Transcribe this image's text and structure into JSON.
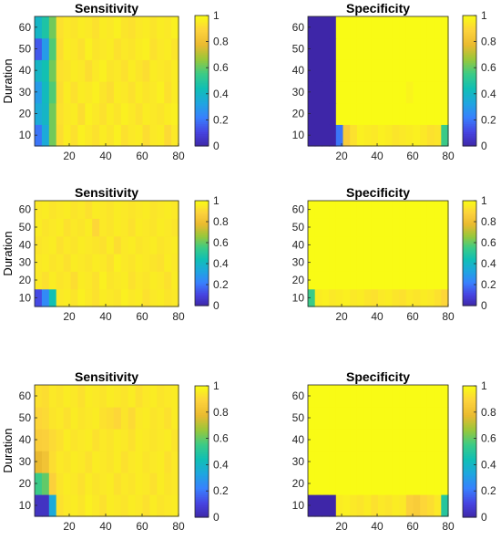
{
  "figure": {
    "colormap": [
      "#3e26a8",
      "#4745e2",
      "#3881fe",
      "#1ea6df",
      "#10bfb4",
      "#3ccb86",
      "#99c83a",
      "#eaba30",
      "#fdd23c",
      "#f9fb15"
    ],
    "colorbar_ticks": [
      "0",
      "0.2",
      "0.4",
      "0.6",
      "0.8",
      "1"
    ]
  },
  "chart_data": [
    {
      "type": "heatmap",
      "title": "Sensitivity",
      "ylabel": "Duration",
      "xticks": [
        "20",
        "40",
        "60",
        "80"
      ],
      "yticks": [
        "10",
        "20",
        "30",
        "40",
        "50",
        "60"
      ],
      "xlim": [
        1,
        80
      ],
      "ylim": [
        5,
        65
      ],
      "clim": [
        0,
        1
      ],
      "rows": [
        "10",
        "20",
        "30",
        "40",
        "50",
        "60"
      ],
      "cols": [
        "1-4",
        "5-8",
        "9-12",
        "13-16",
        "17-20",
        "21-24",
        "25-28",
        "29-32",
        "33-36",
        "37-40",
        "41-44",
        "45-48",
        "49-52",
        "53-56",
        "57-60",
        "61-64",
        "65-68",
        "69-72",
        "73-76",
        "77-80"
      ],
      "z": [
        [
          0.2,
          0.35,
          0.62,
          0.92,
          0.96,
          0.93,
          0.97,
          0.95,
          0.93,
          0.96,
          0.94,
          0.97,
          0.93,
          0.95,
          0.96,
          0.92,
          0.95,
          0.96,
          0.91,
          0.95
        ],
        [
          0.35,
          0.4,
          0.62,
          0.93,
          0.95,
          0.96,
          0.92,
          0.97,
          0.95,
          0.93,
          0.96,
          0.94,
          0.97,
          0.95,
          0.93,
          0.96,
          0.95,
          0.94,
          0.96,
          0.97
        ],
        [
          0.3,
          0.42,
          0.58,
          0.92,
          0.96,
          0.93,
          0.96,
          0.95,
          0.97,
          0.94,
          0.92,
          0.96,
          0.95,
          0.93,
          0.96,
          0.94,
          0.95,
          0.97,
          0.93,
          0.96
        ],
        [
          0.4,
          0.45,
          0.62,
          0.93,
          0.94,
          0.96,
          0.95,
          0.92,
          0.95,
          0.97,
          0.94,
          0.95,
          0.93,
          0.96,
          0.94,
          0.92,
          0.96,
          0.95,
          0.94,
          0.96
        ],
        [
          0.15,
          0.3,
          0.58,
          0.92,
          0.96,
          0.95,
          0.93,
          0.97,
          0.94,
          0.95,
          0.96,
          0.93,
          0.95,
          0.94,
          0.96,
          0.97,
          0.93,
          0.95,
          0.96,
          0.94
        ],
        [
          0.4,
          0.48,
          0.62,
          0.93,
          0.95,
          0.94,
          0.96,
          0.95,
          0.93,
          0.96,
          0.95,
          0.97,
          0.94,
          0.93,
          0.95,
          0.96,
          0.94,
          0.96,
          0.95,
          0.97
        ]
      ]
    },
    {
      "type": "heatmap",
      "title": "Specificity",
      "ylabel": "",
      "xticks": [
        "20",
        "40",
        "60",
        "80"
      ],
      "yticks": [
        "10",
        "20",
        "30",
        "40",
        "50",
        "60"
      ],
      "xlim": [
        1,
        80
      ],
      "ylim": [
        5,
        65
      ],
      "clim": [
        0,
        1
      ],
      "rows": [
        "10",
        "20",
        "30",
        "40",
        "50",
        "60"
      ],
      "cols": [
        "1-4",
        "5-8",
        "9-12",
        "13-16",
        "17-20",
        "21-24",
        "25-28",
        "29-32",
        "33-36",
        "37-40",
        "41-44",
        "45-48",
        "49-52",
        "53-56",
        "57-60",
        "61-64",
        "65-68",
        "69-72",
        "73-76",
        "77-80"
      ],
      "z": [
        [
          0.0,
          0.0,
          0.0,
          0.0,
          0.2,
          0.86,
          0.93,
          0.97,
          0.96,
          0.95,
          0.97,
          0.96,
          0.94,
          0.95,
          0.96,
          0.97,
          0.95,
          0.93,
          0.94,
          0.55
        ],
        [
          0.0,
          0.0,
          0.0,
          0.0,
          1.0,
          1.0,
          1.0,
          1.0,
          1.0,
          1.0,
          1.0,
          1.0,
          1.0,
          1.0,
          1.0,
          1.0,
          1.0,
          1.0,
          1.0,
          1.0
        ],
        [
          0.0,
          0.0,
          0.0,
          0.0,
          1.0,
          1.0,
          1.0,
          1.0,
          1.0,
          1.0,
          1.0,
          1.0,
          1.0,
          1.0,
          0.98,
          1.0,
          1.0,
          1.0,
          1.0,
          1.0
        ],
        [
          0.0,
          0.0,
          0.0,
          0.0,
          1.0,
          1.0,
          1.0,
          1.0,
          1.0,
          1.0,
          1.0,
          1.0,
          1.0,
          1.0,
          1.0,
          1.0,
          1.0,
          1.0,
          1.0,
          1.0
        ],
        [
          0.0,
          0.0,
          0.0,
          0.0,
          1.0,
          1.0,
          1.0,
          1.0,
          1.0,
          1.0,
          1.0,
          1.0,
          1.0,
          1.0,
          1.0,
          1.0,
          1.0,
          1.0,
          1.0,
          1.0
        ],
        [
          0.0,
          0.0,
          0.0,
          0.0,
          1.0,
          1.0,
          1.0,
          1.0,
          1.0,
          1.0,
          1.0,
          1.0,
          1.0,
          1.0,
          1.0,
          1.0,
          1.0,
          1.0,
          1.0,
          1.0
        ]
      ]
    },
    {
      "type": "heatmap",
      "title": "Sensitivity",
      "ylabel": "Duration",
      "xticks": [
        "20",
        "40",
        "60",
        "80"
      ],
      "yticks": [
        "10",
        "20",
        "30",
        "40",
        "50",
        "60"
      ],
      "xlim": [
        1,
        80
      ],
      "ylim": [
        5,
        65
      ],
      "clim": [
        0,
        1
      ],
      "rows": [
        "10",
        "20",
        "30",
        "40",
        "50",
        "60"
      ],
      "cols": [
        "1-4",
        "5-8",
        "9-12",
        "13-16",
        "17-20",
        "21-24",
        "25-28",
        "29-32",
        "33-36",
        "37-40",
        "41-44",
        "45-48",
        "49-52",
        "53-56",
        "57-60",
        "61-64",
        "65-68",
        "69-72",
        "73-76",
        "77-80"
      ],
      "z": [
        [
          0.12,
          0.25,
          0.45,
          0.95,
          0.96,
          0.94,
          0.97,
          0.95,
          0.93,
          0.96,
          0.95,
          0.94,
          0.97,
          0.95,
          0.96,
          0.93,
          0.95,
          0.96,
          0.94,
          0.95
        ],
        [
          0.95,
          0.93,
          0.96,
          0.94,
          0.95,
          0.92,
          0.96,
          0.95,
          0.93,
          0.97,
          0.94,
          0.95,
          0.96,
          0.93,
          0.95,
          0.94,
          0.96,
          0.95,
          0.93,
          0.96
        ],
        [
          0.95,
          0.96,
          0.94,
          0.95,
          0.93,
          0.96,
          0.95,
          0.94,
          0.96,
          0.95,
          0.93,
          0.97,
          0.95,
          0.94,
          0.96,
          0.95,
          0.94,
          0.93,
          0.96,
          0.95
        ],
        [
          0.94,
          0.95,
          0.96,
          0.93,
          0.95,
          0.94,
          0.96,
          0.95,
          0.94,
          0.93,
          0.96,
          0.92,
          0.95,
          0.96,
          0.94,
          0.95,
          0.96,
          0.94,
          0.95,
          0.96
        ],
        [
          0.96,
          0.94,
          0.95,
          0.96,
          0.93,
          0.95,
          0.94,
          0.96,
          0.9,
          0.95,
          0.94,
          0.96,
          0.95,
          0.93,
          0.96,
          0.95,
          0.94,
          0.96,
          0.95,
          0.94
        ],
        [
          0.95,
          0.96,
          0.94,
          0.95,
          0.96,
          0.94,
          0.95,
          0.93,
          0.96,
          0.95,
          0.94,
          0.96,
          0.95,
          0.94,
          0.95,
          0.96,
          0.94,
          0.95,
          0.96,
          0.95
        ]
      ]
    },
    {
      "type": "heatmap",
      "title": "Specificity",
      "ylabel": "",
      "xticks": [
        "20",
        "40",
        "60",
        "80"
      ],
      "yticks": [
        "10",
        "20",
        "30",
        "40",
        "50",
        "60"
      ],
      "xlim": [
        1,
        80
      ],
      "ylim": [
        5,
        65
      ],
      "clim": [
        0,
        1
      ],
      "rows": [
        "10",
        "20",
        "30",
        "40",
        "50",
        "60"
      ],
      "cols": [
        "1-4",
        "5-8",
        "9-12",
        "13-16",
        "17-20",
        "21-24",
        "25-28",
        "29-32",
        "33-36",
        "37-40",
        "41-44",
        "45-48",
        "49-52",
        "53-56",
        "57-60",
        "61-64",
        "65-68",
        "69-72",
        "73-76",
        "77-80"
      ],
      "z": [
        [
          0.55,
          0.96,
          0.97,
          0.95,
          0.96,
          0.97,
          0.95,
          0.96,
          0.94,
          0.93,
          0.95,
          0.96,
          0.94,
          0.93,
          0.95,
          0.94,
          0.96,
          0.95,
          0.93,
          0.9
        ],
        [
          1.0,
          1.0,
          1.0,
          1.0,
          1.0,
          1.0,
          1.0,
          1.0,
          1.0,
          1.0,
          1.0,
          1.0,
          1.0,
          1.0,
          1.0,
          1.0,
          1.0,
          1.0,
          1.0,
          1.0
        ],
        [
          1.0,
          1.0,
          1.0,
          1.0,
          1.0,
          1.0,
          1.0,
          1.0,
          1.0,
          1.0,
          1.0,
          1.0,
          1.0,
          1.0,
          1.0,
          1.0,
          1.0,
          1.0,
          1.0,
          1.0
        ],
        [
          1.0,
          1.0,
          1.0,
          1.0,
          1.0,
          1.0,
          1.0,
          1.0,
          1.0,
          1.0,
          1.0,
          1.0,
          1.0,
          1.0,
          1.0,
          1.0,
          1.0,
          1.0,
          1.0,
          1.0
        ],
        [
          1.0,
          1.0,
          1.0,
          1.0,
          1.0,
          1.0,
          1.0,
          1.0,
          1.0,
          1.0,
          1.0,
          1.0,
          1.0,
          1.0,
          1.0,
          1.0,
          1.0,
          1.0,
          1.0,
          1.0
        ],
        [
          1.0,
          1.0,
          1.0,
          1.0,
          1.0,
          1.0,
          1.0,
          1.0,
          1.0,
          1.0,
          1.0,
          1.0,
          1.0,
          1.0,
          1.0,
          1.0,
          1.0,
          1.0,
          1.0,
          1.0
        ]
      ]
    },
    {
      "type": "heatmap",
      "title": "Sensitivity",
      "ylabel": "Duration",
      "xticks": [
        "20",
        "40",
        "60",
        "80"
      ],
      "yticks": [
        "10",
        "20",
        "30",
        "40",
        "50",
        "60"
      ],
      "xlim": [
        1,
        80
      ],
      "ylim": [
        5,
        65
      ],
      "clim": [
        0,
        1
      ],
      "rows": [
        "10",
        "20",
        "30",
        "40",
        "50",
        "60"
      ],
      "cols": [
        "1-4",
        "5-8",
        "9-12",
        "13-16",
        "17-20",
        "21-24",
        "25-28",
        "29-32",
        "33-36",
        "37-40",
        "41-44",
        "45-48",
        "49-52",
        "53-56",
        "57-60",
        "61-64",
        "65-68",
        "69-72",
        "73-76",
        "77-80"
      ],
      "z": [
        [
          0.05,
          0.05,
          0.35,
          0.93,
          0.95,
          0.96,
          0.94,
          0.97,
          0.95,
          0.93,
          0.96,
          0.95,
          0.94,
          0.96,
          0.95,
          0.93,
          0.96,
          0.94,
          0.95,
          0.96
        ],
        [
          0.55,
          0.6,
          0.88,
          0.94,
          0.96,
          0.95,
          0.93,
          0.96,
          0.94,
          0.95,
          0.96,
          0.93,
          0.95,
          0.94,
          0.96,
          0.95,
          0.93,
          0.96,
          0.94,
          0.95
        ],
        [
          0.78,
          0.82,
          0.92,
          0.95,
          0.94,
          0.96,
          0.95,
          0.93,
          0.96,
          0.95,
          0.94,
          0.96,
          0.93,
          0.95,
          0.96,
          0.94,
          0.95,
          0.96,
          0.93,
          0.95
        ],
        [
          0.87,
          0.88,
          0.91,
          0.93,
          0.96,
          0.94,
          0.95,
          0.96,
          0.93,
          0.95,
          0.94,
          0.96,
          0.95,
          0.93,
          0.96,
          0.95,
          0.94,
          0.95,
          0.96,
          0.94
        ],
        [
          0.9,
          0.91,
          0.94,
          0.95,
          0.93,
          0.96,
          0.94,
          0.95,
          0.96,
          0.93,
          0.92,
          0.9,
          0.94,
          0.91,
          0.95,
          0.96,
          0.94,
          0.95,
          0.93,
          0.96
        ],
        [
          0.93,
          0.92,
          0.95,
          0.94,
          0.96,
          0.95,
          0.93,
          0.96,
          0.95,
          0.94,
          0.96,
          0.95,
          0.94,
          0.96,
          0.93,
          0.95,
          0.96,
          0.94,
          0.95,
          0.96
        ]
      ]
    },
    {
      "type": "heatmap",
      "title": "Specificity",
      "ylabel": "",
      "xticks": [
        "20",
        "40",
        "60",
        "80"
      ],
      "yticks": [
        "10",
        "20",
        "30",
        "40",
        "50",
        "60"
      ],
      "xlim": [
        1,
        80
      ],
      "ylim": [
        5,
        65
      ],
      "clim": [
        0,
        1
      ],
      "rows": [
        "10",
        "20",
        "30",
        "40",
        "50",
        "60"
      ],
      "cols": [
        "1-4",
        "5-8",
        "9-12",
        "13-16",
        "17-20",
        "21-24",
        "25-28",
        "29-32",
        "33-36",
        "37-40",
        "41-44",
        "45-48",
        "49-52",
        "53-56",
        "57-60",
        "61-64",
        "65-68",
        "69-72",
        "73-76",
        "77-80"
      ],
      "z": [
        [
          0.0,
          0.0,
          0.0,
          0.0,
          0.96,
          0.97,
          0.95,
          0.94,
          0.96,
          0.93,
          0.95,
          0.94,
          0.96,
          0.95,
          0.88,
          0.86,
          0.9,
          0.92,
          0.95,
          0.5
        ],
        [
          1.0,
          1.0,
          1.0,
          1.0,
          1.0,
          1.0,
          1.0,
          1.0,
          1.0,
          1.0,
          1.0,
          1.0,
          1.0,
          1.0,
          1.0,
          1.0,
          1.0,
          1.0,
          1.0,
          1.0
        ],
        [
          1.0,
          1.0,
          1.0,
          1.0,
          1.0,
          1.0,
          1.0,
          1.0,
          1.0,
          1.0,
          1.0,
          1.0,
          1.0,
          1.0,
          1.0,
          1.0,
          1.0,
          1.0,
          1.0,
          1.0
        ],
        [
          1.0,
          1.0,
          1.0,
          1.0,
          1.0,
          1.0,
          1.0,
          1.0,
          1.0,
          1.0,
          1.0,
          1.0,
          1.0,
          1.0,
          1.0,
          1.0,
          1.0,
          1.0,
          1.0,
          1.0
        ],
        [
          1.0,
          1.0,
          1.0,
          1.0,
          1.0,
          1.0,
          1.0,
          1.0,
          1.0,
          1.0,
          1.0,
          1.0,
          1.0,
          1.0,
          1.0,
          1.0,
          1.0,
          1.0,
          1.0,
          1.0
        ],
        [
          1.0,
          1.0,
          1.0,
          1.0,
          1.0,
          1.0,
          1.0,
          1.0,
          1.0,
          1.0,
          1.0,
          1.0,
          1.0,
          1.0,
          1.0,
          1.0,
          1.0,
          1.0,
          1.0,
          1.0
        ]
      ]
    }
  ]
}
